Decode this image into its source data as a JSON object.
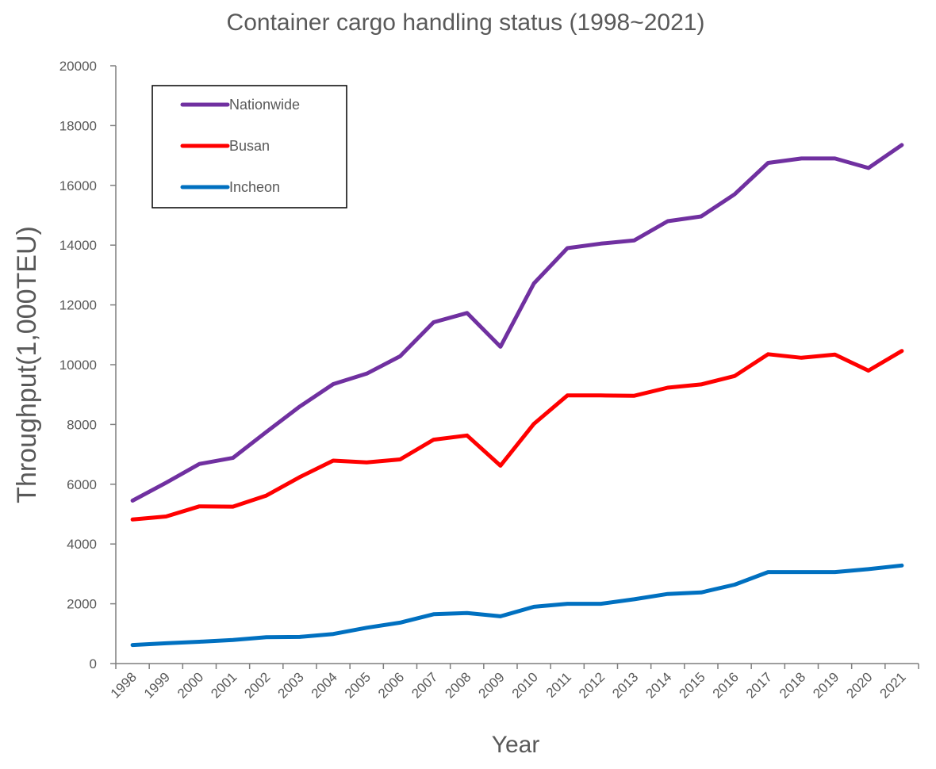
{
  "chart_data": {
    "type": "line",
    "title": "Container cargo handling status (1998~2021)",
    "xlabel": "Year",
    "ylabel": "Throughput(1,000TEU)",
    "ylim": [
      0,
      20000
    ],
    "yticks": [
      0,
      2000,
      4000,
      6000,
      8000,
      10000,
      12000,
      14000,
      16000,
      18000,
      20000
    ],
    "categories": [
      "1998",
      "1999",
      "2000",
      "2001",
      "2002",
      "2003",
      "2004",
      "2005",
      "2006",
      "2007",
      "2008",
      "2009",
      "2010",
      "2011",
      "2012",
      "2013",
      "2014",
      "2015",
      "2016",
      "2017",
      "2018",
      "2019",
      "2020",
      "2021"
    ],
    "legend_position": "top-left",
    "grid": false,
    "series": [
      {
        "name": "Nationwide",
        "color": "#7030a0",
        "values": [
          5450,
          6050,
          6680,
          6880,
          7750,
          8600,
          9350,
          9700,
          10280,
          11420,
          11730,
          10600,
          12720,
          13900,
          14050,
          14160,
          14800,
          14960,
          15700,
          16750,
          16900,
          16900,
          16580,
          17350
        ]
      },
      {
        "name": "Busan",
        "color": "#ff0000",
        "values": [
          4820,
          4920,
          5260,
          5250,
          5620,
          6240,
          6790,
          6730,
          6830,
          7490,
          7630,
          6620,
          8020,
          8970,
          8970,
          8960,
          9230,
          9340,
          9620,
          10350,
          10230,
          10340,
          9800,
          10460
        ]
      },
      {
        "name": "Incheon",
        "color": "#0070c0",
        "values": [
          620,
          680,
          730,
          790,
          880,
          890,
          990,
          1200,
          1370,
          1650,
          1690,
          1580,
          1900,
          2000,
          2000,
          2150,
          2330,
          2380,
          2640,
          3060,
          3060,
          3060,
          3160,
          3280
        ]
      }
    ]
  }
}
